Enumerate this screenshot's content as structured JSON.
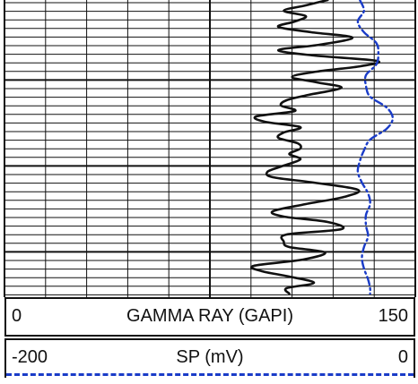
{
  "chart_data": {
    "type": "line",
    "title": "",
    "grid": true,
    "depth_axis": "vertical",
    "series": [
      {
        "name": "GAMMA RAY (GAPI)",
        "unit": "GAPI",
        "xlim": [
          0,
          150
        ],
        "color": "#111111",
        "style": "solid",
        "points": [
          {
            "depth": 0,
            "value": 118
          },
          {
            "depth": 6,
            "value": 110
          },
          {
            "depth": 12,
            "value": 102
          },
          {
            "depth": 18,
            "value": 110
          },
          {
            "depth": 24,
            "value": 106
          },
          {
            "depth": 30,
            "value": 100
          },
          {
            "depth": 36,
            "value": 112
          },
          {
            "depth": 42,
            "value": 127
          },
          {
            "depth": 50,
            "value": 115
          },
          {
            "depth": 56,
            "value": 100
          },
          {
            "depth": 62,
            "value": 113
          },
          {
            "depth": 68,
            "value": 136
          },
          {
            "depth": 74,
            "value": 130
          },
          {
            "depth": 80,
            "value": 114
          },
          {
            "depth": 86,
            "value": 105
          },
          {
            "depth": 92,
            "value": 114
          },
          {
            "depth": 98,
            "value": 123
          },
          {
            "depth": 106,
            "value": 111
          },
          {
            "depth": 112,
            "value": 103
          },
          {
            "depth": 118,
            "value": 101
          },
          {
            "depth": 124,
            "value": 106
          },
          {
            "depth": 130,
            "value": 92
          },
          {
            "depth": 136,
            "value": 95
          },
          {
            "depth": 142,
            "value": 108
          },
          {
            "depth": 148,
            "value": 102
          },
          {
            "depth": 154,
            "value": 100
          },
          {
            "depth": 160,
            "value": 107
          },
          {
            "depth": 166,
            "value": 108
          },
          {
            "depth": 172,
            "value": 104
          },
          {
            "depth": 178,
            "value": 108
          },
          {
            "depth": 186,
            "value": 101
          },
          {
            "depth": 192,
            "value": 96
          },
          {
            "depth": 198,
            "value": 98
          },
          {
            "depth": 204,
            "value": 113
          },
          {
            "depth": 212,
            "value": 129
          },
          {
            "depth": 220,
            "value": 124
          },
          {
            "depth": 228,
            "value": 110
          },
          {
            "depth": 236,
            "value": 98
          },
          {
            "depth": 242,
            "value": 102
          },
          {
            "depth": 248,
            "value": 118
          },
          {
            "depth": 256,
            "value": 123
          },
          {
            "depth": 262,
            "value": 103
          },
          {
            "depth": 270,
            "value": 102
          },
          {
            "depth": 276,
            "value": 104
          },
          {
            "depth": 282,
            "value": 117
          },
          {
            "depth": 290,
            "value": 109
          },
          {
            "depth": 297,
            "value": 91
          },
          {
            "depth": 303,
            "value": 94
          },
          {
            "depth": 309,
            "value": 104
          },
          {
            "depth": 316,
            "value": 113
          },
          {
            "depth": 322,
            "value": 103
          },
          {
            "depth": 328,
            "value": 104
          }
        ]
      },
      {
        "name": "SP (mV)",
        "unit": "mV",
        "xlim": [
          -200,
          0
        ],
        "color": "#1a3cc8",
        "style": "dash-dot",
        "points": [
          {
            "depth": 0,
            "value": -27
          },
          {
            "depth": 12,
            "value": -25
          },
          {
            "depth": 24,
            "value": -28
          },
          {
            "depth": 36,
            "value": -25
          },
          {
            "depth": 48,
            "value": -19
          },
          {
            "depth": 60,
            "value": -18
          },
          {
            "depth": 72,
            "value": -19
          },
          {
            "depth": 84,
            "value": -24
          },
          {
            "depth": 96,
            "value": -24
          },
          {
            "depth": 108,
            "value": -22
          },
          {
            "depth": 120,
            "value": -14
          },
          {
            "depth": 132,
            "value": -11
          },
          {
            "depth": 144,
            "value": -14
          },
          {
            "depth": 156,
            "value": -22
          },
          {
            "depth": 168,
            "value": -25
          },
          {
            "depth": 180,
            "value": -27
          },
          {
            "depth": 192,
            "value": -28
          },
          {
            "depth": 204,
            "value": -26
          },
          {
            "depth": 216,
            "value": -23
          },
          {
            "depth": 228,
            "value": -22
          },
          {
            "depth": 240,
            "value": -24
          },
          {
            "depth": 252,
            "value": -24
          },
          {
            "depth": 264,
            "value": -23
          },
          {
            "depth": 276,
            "value": -25
          },
          {
            "depth": 288,
            "value": -26
          },
          {
            "depth": 300,
            "value": -25
          },
          {
            "depth": 312,
            "value": -23
          },
          {
            "depth": 322,
            "value": -22
          },
          {
            "depth": 328,
            "value": -22
          }
        ]
      }
    ]
  },
  "headers": {
    "gamma_ray": {
      "min_label": "0",
      "name": "GAMMA RAY (GAPI)",
      "max_label": "150"
    },
    "sp": {
      "min_label": "-200",
      "name": "SP (mV)",
      "max_label": "0"
    }
  }
}
